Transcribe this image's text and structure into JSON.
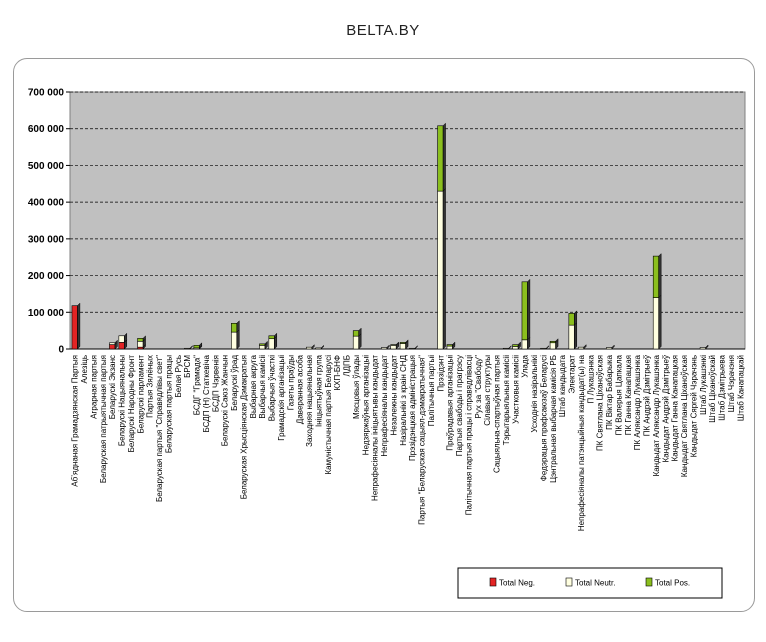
{
  "header": {
    "brand": "BELTA.BY"
  },
  "chart_data": {
    "type": "bar",
    "stacked": true,
    "ylim": [
      0,
      700000
    ],
    "y_ticks": [
      "0",
      "100 000",
      "200 000",
      "300 000",
      "400 000",
      "500 000",
      "600 000",
      "700 000"
    ],
    "grid": true,
    "legend_position": "bottom-right",
    "colors": {
      "neg": "#e32424",
      "neutr": "#ffffe0",
      "pos": "#8bbf1e",
      "plot_bg": "#c0c0c0"
    },
    "categories": [
      "Абʼяднаная Грамадзянская Партыя",
      "Алезіць",
      "Аграрная партыя",
      "Беларуская патрыятычная партыя",
      "Беларускі Экзанс",
      "Беларускі Нацыянальны",
      "Беларускі Народны Фронт",
      "Беларускі парламент",
      "Партыя Зялёных",
      "Беларуская партыя \"Справядлівы свет\"",
      "Беларуская партыя працы",
      "Белая Русь",
      "БРСМ",
      "БСДГ \"Грамада\"",
      "БСДП (Н) Статкевіча",
      "БСДП Чэрвенія",
      "Беларускі Саюз Жанчын",
      "Беларускі ўрад",
      "Беларуская Хрысціянская Дэмакратыя",
      "Выбарная акруга",
      "Выбарчыя камісіі",
      "Выбарчыя ўчасткі",
      "Грамадскія арганізацыі",
      "Газеты праўды",
      "Даверанная асоба",
      "Заходняя нацыянальная",
      "Ініцыятыўная група",
      "Камуністычная партыя Беларусі",
      "КХП-БНФ",
      "ЛДПБ",
      "Мясцовыя ўлады",
      "Недзяржаўныя арганізацыі",
      "Непрафесіяналы ініцыятывы кандыдат",
      "Непрафесіяналы кандыдат",
      "Незалежны кандыдат",
      "Назіральнікі з краін СНД",
      "Прэзідэнцкая адміністрацыя",
      "Партыя \"Беларуская сацыял-дэмакратычная\"",
      "Палітычныя партыі",
      "Прэзідэнт",
      "Праўрадавыя арганізацыі",
      "Партыя свабоды і прагрэсу",
      "Палітычная партыя працы і справядлівасці",
      "Рух за \"Свабоду\"",
      "Сілавыя структуры",
      "Сацыяльна-спартыўная партыя",
      "Тэрытарыяльныя камісіі",
      "Участковыя камісіі",
      "Улада",
      "Усходнія назіральнікі",
      "Федэрацыя прафсаюзаў Беларусі",
      "Цэнтральная выбарчая камісія РБ",
      "Штаб кандыдата",
      "Электарат",
      "Непрафесіяналы патэнцыйныя кандыдат(ы) на",
      "П Лукашэнка",
      "ПК Святлана Ціханоўская",
      "ПК Віктар Бабарыка",
      "ПК Валерыя Цапкала",
      "ПК Ганна Канапацкая",
      "ПК Аляксандр Лукашэнка",
      "ПК Андрэй Дзмітрыеў",
      "Кандыдат Аляксандр Лукашэнка",
      "Кандыдат Андрэй Дзмітрыеў",
      "Кандыдат Ганна Канапацкая",
      "Кандыдат Святлана Ціханоўская",
      "Кандыдат Сяргей Чэрачэнь",
      "Штаб Лукашэнкі",
      "Штаб Ціханоўскай",
      "Штаб Дзмітрыева",
      "Штаб Чэрачэня",
      "Штаб Канапацкай"
    ],
    "series": [
      {
        "name": "Total Neg.",
        "values": [
          118000,
          0,
          0,
          0,
          12000,
          18000,
          0,
          5000,
          0,
          0,
          0,
          0,
          0,
          0,
          0,
          0,
          0,
          0,
          0,
          0,
          0,
          0,
          0,
          0,
          0,
          0,
          0,
          0,
          0,
          0,
          0,
          0,
          0,
          0,
          0,
          0,
          0,
          0,
          0,
          0,
          0,
          0,
          0,
          0,
          0,
          0,
          0,
          0,
          0,
          0,
          0,
          0,
          0,
          0,
          0,
          0,
          0,
          0,
          0,
          0,
          0,
          0,
          0,
          0,
          0,
          0,
          0,
          0,
          0,
          0,
          0,
          0
        ]
      },
      {
        "name": "Total Neutr.",
        "values": [
          0,
          0,
          0,
          0,
          5000,
          18000,
          0,
          16000,
          0,
          0,
          0,
          0,
          2000,
          3000,
          0,
          0,
          0,
          46000,
          0,
          0,
          10000,
          28000,
          0,
          0,
          0,
          5000,
          3000,
          0,
          0,
          0,
          35000,
          0,
          0,
          4000,
          10000,
          15000,
          2000,
          0,
          0,
          430000,
          8000,
          0,
          0,
          0,
          0,
          0,
          2000,
          7000,
          25000,
          0,
          2000,
          17000,
          0,
          65000,
          5000,
          0,
          0,
          4000,
          0,
          0,
          0,
          0,
          140000,
          0,
          0,
          0,
          0,
          4000,
          0,
          0,
          0,
          0
        ]
      },
      {
        "name": "Total Pos.",
        "values": [
          0,
          0,
          0,
          0,
          0,
          0,
          0,
          8000,
          0,
          0,
          0,
          0,
          0,
          7000,
          0,
          0,
          0,
          24000,
          0,
          0,
          4000,
          8000,
          0,
          0,
          0,
          0,
          0,
          0,
          0,
          0,
          15000,
          0,
          0,
          0,
          2000,
          3000,
          0,
          0,
          0,
          178000,
          4000,
          0,
          0,
          0,
          0,
          0,
          0,
          5000,
          158000,
          0,
          0,
          4000,
          0,
          32000,
          0,
          0,
          0,
          0,
          0,
          0,
          0,
          0,
          113000,
          0,
          0,
          0,
          0,
          0,
          0,
          0,
          0,
          0
        ]
      }
    ]
  }
}
